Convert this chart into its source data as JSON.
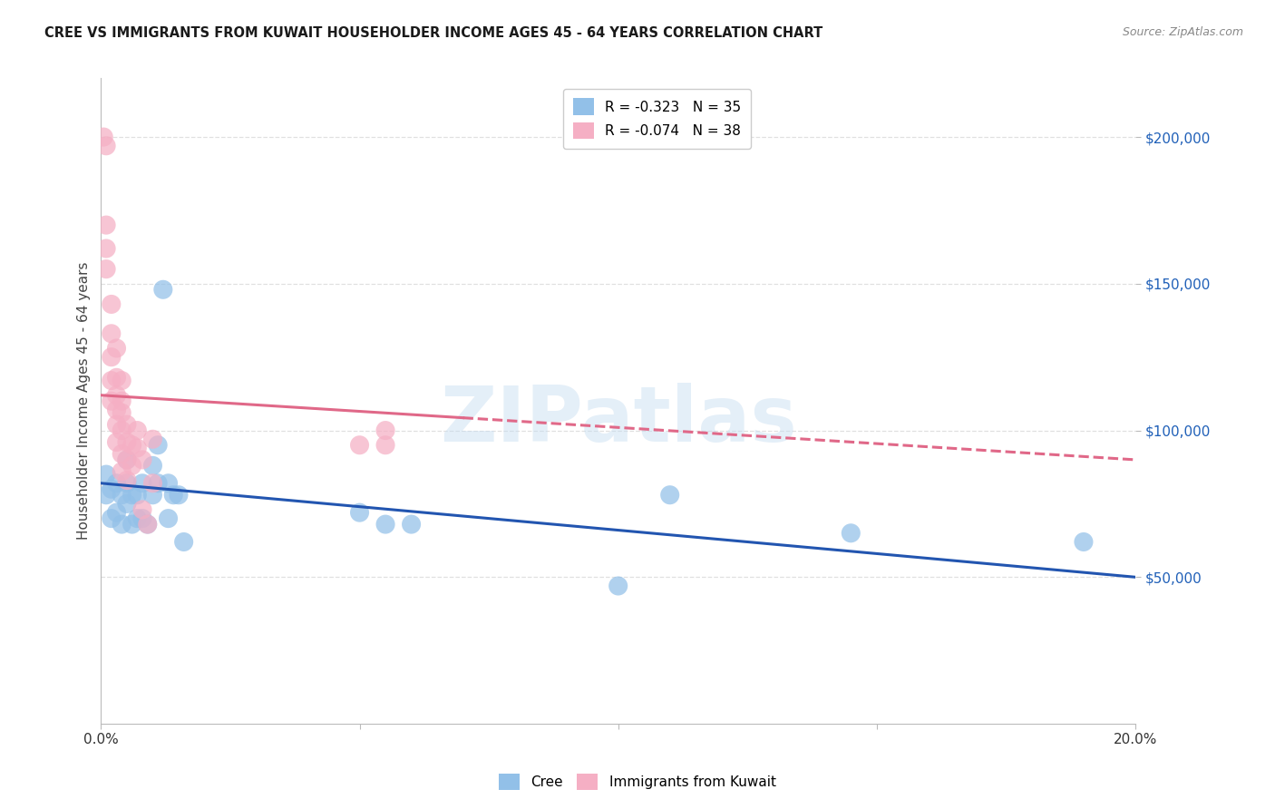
{
  "title": "CREE VS IMMIGRANTS FROM KUWAIT HOUSEHOLDER INCOME AGES 45 - 64 YEARS CORRELATION CHART",
  "source": "Source: ZipAtlas.com",
  "ylabel": "Householder Income Ages 45 - 64 years",
  "xmin": 0.0,
  "xmax": 0.2,
  "ymin": 0,
  "ymax": 220000,
  "yticks": [
    50000,
    100000,
    150000,
    200000
  ],
  "ytick_labels": [
    "$50,000",
    "$100,000",
    "$150,000",
    "$200,000"
  ],
  "xticks": [
    0.0,
    0.05,
    0.1,
    0.15,
    0.2
  ],
  "xtick_labels": [
    "0.0%",
    "",
    "",
    "",
    "20.0%"
  ],
  "watermark": "ZIPatlas",
  "legend_r_blue": "R = -0.323",
  "legend_n_blue": "N = 35",
  "legend_r_pink": "R = -0.074",
  "legend_n_pink": "N = 38",
  "blue_color": "#92c0e8",
  "pink_color": "#f5afc4",
  "blue_line_color": "#2255b0",
  "pink_line_color": "#e06888",
  "grid_color": "#e0e0e0",
  "blue_scatter_x": [
    0.001,
    0.001,
    0.002,
    0.002,
    0.003,
    0.003,
    0.004,
    0.004,
    0.005,
    0.005,
    0.005,
    0.006,
    0.006,
    0.007,
    0.007,
    0.008,
    0.008,
    0.009,
    0.01,
    0.01,
    0.011,
    0.011,
    0.012,
    0.013,
    0.013,
    0.014,
    0.015,
    0.016,
    0.05,
    0.055,
    0.06,
    0.1,
    0.11,
    0.145,
    0.19
  ],
  "blue_scatter_y": [
    85000,
    78000,
    80000,
    70000,
    82000,
    72000,
    78000,
    68000,
    90000,
    82000,
    75000,
    78000,
    68000,
    78000,
    70000,
    82000,
    70000,
    68000,
    88000,
    78000,
    82000,
    95000,
    148000,
    82000,
    70000,
    78000,
    78000,
    62000,
    72000,
    68000,
    68000,
    47000,
    78000,
    65000,
    62000
  ],
  "pink_scatter_x": [
    0.0005,
    0.001,
    0.001,
    0.001,
    0.001,
    0.002,
    0.002,
    0.002,
    0.002,
    0.002,
    0.003,
    0.003,
    0.003,
    0.003,
    0.003,
    0.003,
    0.004,
    0.004,
    0.004,
    0.004,
    0.004,
    0.004,
    0.005,
    0.005,
    0.005,
    0.005,
    0.006,
    0.006,
    0.007,
    0.007,
    0.008,
    0.008,
    0.009,
    0.01,
    0.01,
    0.05,
    0.055,
    0.055
  ],
  "pink_scatter_y": [
    200000,
    197000,
    170000,
    162000,
    155000,
    143000,
    133000,
    125000,
    117000,
    110000,
    128000,
    118000,
    112000,
    107000,
    102000,
    96000,
    117000,
    110000,
    106000,
    100000,
    92000,
    86000,
    102000,
    96000,
    90000,
    83000,
    95000,
    88000,
    100000,
    94000,
    90000,
    73000,
    68000,
    97000,
    82000,
    95000,
    95000,
    100000
  ]
}
